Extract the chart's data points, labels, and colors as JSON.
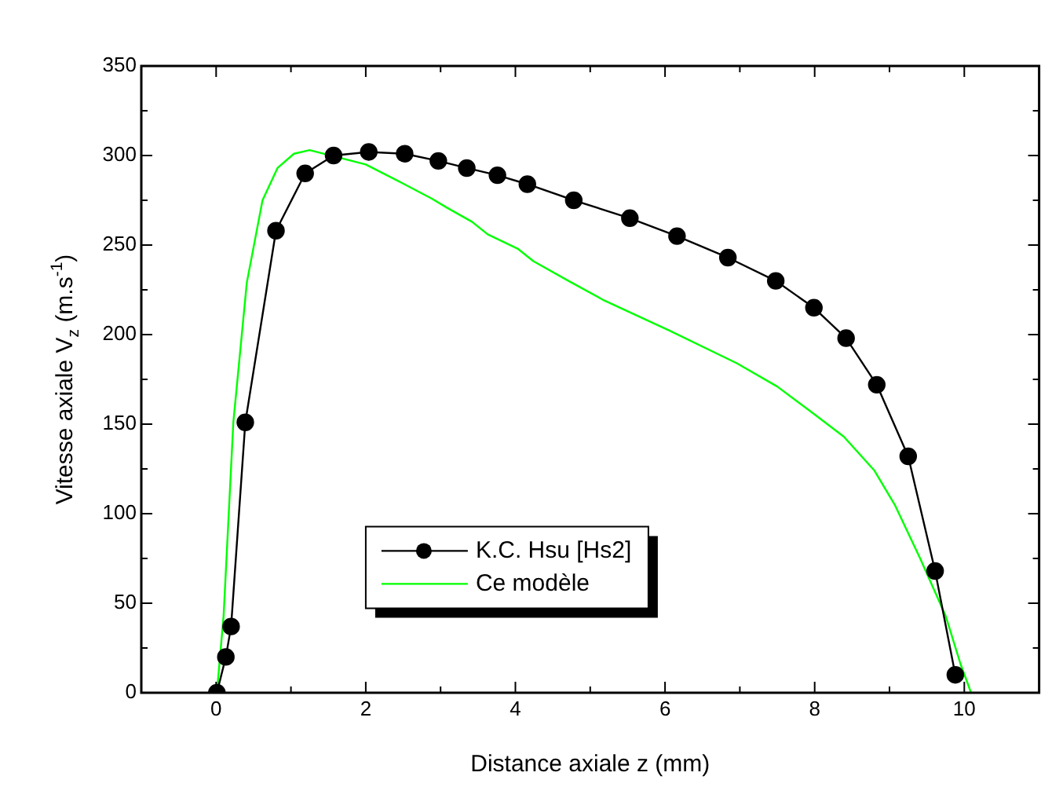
{
  "chart_data": {
    "type": "line",
    "xlabel": "Distance axiale z (mm)",
    "ylabel": "Vitesse axiale V$_{z}$ (m.s$^{-1}$)",
    "xlim": [
      -1,
      11
    ],
    "ylim": [
      0,
      350
    ],
    "xticks": [
      0,
      {
        "value": 1,
        "label": null
      },
      2,
      {
        "value": 3,
        "label": null
      },
      4,
      {
        "value": 5,
        "label": null
      },
      6,
      {
        "value": 7,
        "label": null
      },
      8,
      {
        "value": 9,
        "label": null
      },
      10
    ],
    "yticks": [
      0,
      {
        "value": 25,
        "label": null
      },
      50,
      {
        "value": 75,
        "label": null
      },
      100,
      {
        "value": 125,
        "label": null
      },
      150,
      {
        "value": 175,
        "label": null
      },
      200,
      {
        "value": 225,
        "label": null
      },
      250,
      {
        "value": 275,
        "label": null
      },
      300,
      {
        "value": 325,
        "label": null
      },
      350
    ],
    "grid": false,
    "legend": "bottom",
    "series": [
      {
        "name": "K.C. Hsu [Hs2]",
        "color": "#000000",
        "marker": "circle",
        "x": [
          0.01,
          0.13,
          0.2,
          0.39,
          0.8,
          1.19,
          1.57,
          2.04,
          2.52,
          2.97,
          3.35,
          3.76,
          4.16,
          4.78,
          5.53,
          6.16,
          6.84,
          7.48,
          7.99,
          8.42,
          8.83,
          9.25,
          9.61,
          9.88
        ],
        "values": [
          0,
          20,
          37,
          151,
          258,
          290,
          300,
          302,
          301,
          297,
          293,
          289,
          284,
          275,
          265,
          255,
          243,
          230,
          215,
          198,
          172,
          132,
          68,
          10
        ]
      },
      {
        "name": "Ce modèle",
        "color": "#00ff00",
        "marker": "none",
        "x": [
          0.01,
          0.1,
          0.23,
          0.41,
          0.62,
          0.82,
          1.04,
          1.25,
          2.0,
          2.47,
          2.88,
          3.08,
          3.42,
          3.63,
          4.03,
          4.24,
          4.71,
          5.19,
          6.07,
          6.96,
          7.5,
          7.98,
          8.39,
          8.8,
          9.07,
          9.41,
          9.75,
          9.95,
          10.09
        ],
        "values": [
          0,
          43,
          151,
          229,
          275,
          293,
          301,
          303,
          295,
          285,
          276,
          271,
          263,
          256,
          248,
          241,
          230,
          219,
          202,
          184,
          171,
          156,
          143,
          124,
          105,
          75,
          43,
          16,
          0
        ]
      }
    ]
  }
}
